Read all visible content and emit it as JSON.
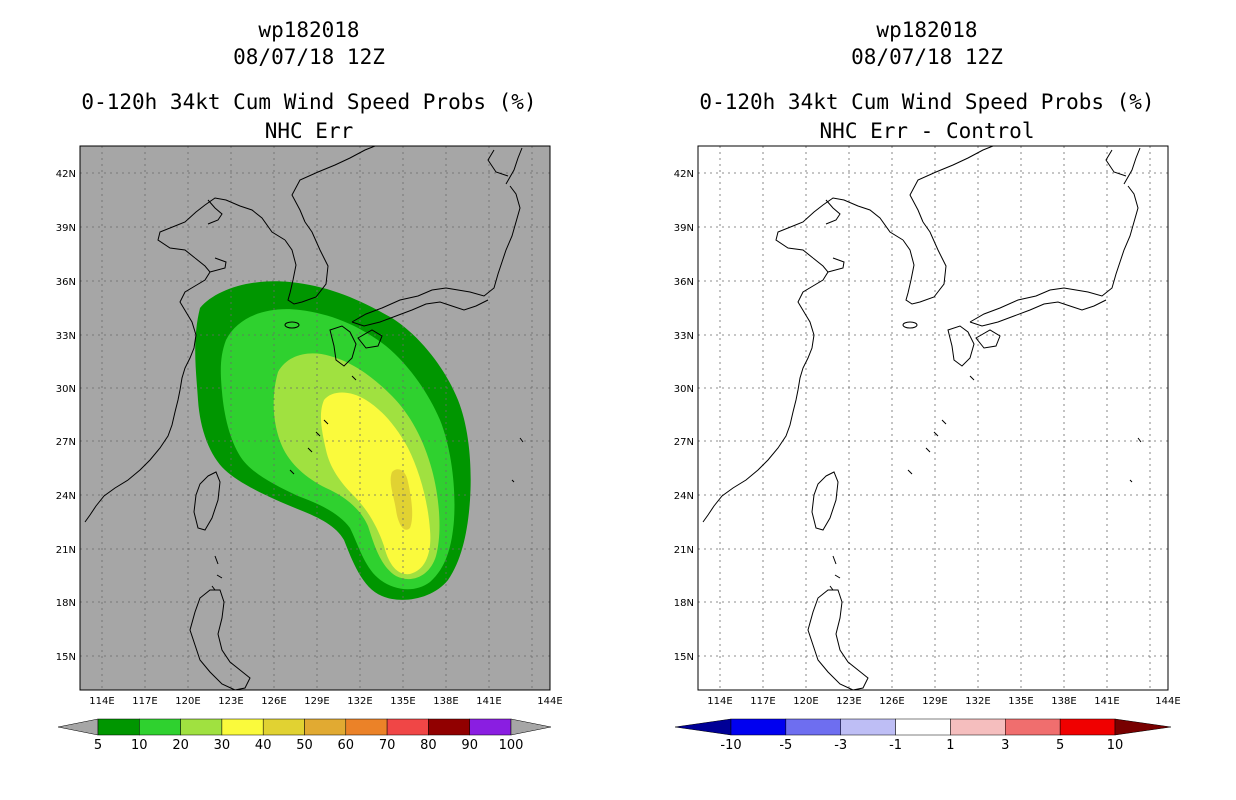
{
  "left": {
    "storm": "wp182018",
    "datetime": "08/07/18 12Z",
    "product": "0-120h 34kt Cum Wind Speed Probs (%)",
    "subtitle": "NHC Err",
    "lat_ticks": [
      "42N",
      "39N",
      "36N",
      "33N",
      "30N",
      "27N",
      "24N",
      "21N",
      "18N",
      "15N"
    ],
    "lon_ticks": [
      "114E",
      "117E",
      "120E",
      "123E",
      "126E",
      "129E",
      "132E",
      "135E",
      "138E",
      "141E",
      "144E"
    ],
    "colorbar": {
      "labels": [
        "5",
        "10",
        "20",
        "30",
        "40",
        "50",
        "60",
        "70",
        "80",
        "90",
        "100"
      ],
      "colors": [
        "#009600",
        "#2fd12f",
        "#a0e140",
        "#fafa3c",
        "#e1d232",
        "#e1aa32",
        "#eb8228",
        "#f04646",
        "#910000",
        "#8a1ee1"
      ],
      "under_color": "#a6a6a6",
      "over_color": "#a6a6a6"
    },
    "background_color": "#a6a6a6"
  },
  "right": {
    "storm": "wp182018",
    "datetime": "08/07/18 12Z",
    "product": "0-120h 34kt Cum Wind Speed Probs (%)",
    "subtitle": "NHC Err - Control",
    "lat_ticks": [
      "42N",
      "39N",
      "36N",
      "33N",
      "30N",
      "27N",
      "24N",
      "21N",
      "18N",
      "15N"
    ],
    "lon_ticks": [
      "114E",
      "117E",
      "120E",
      "123E",
      "126E",
      "129E",
      "132E",
      "135E",
      "138E",
      "141E",
      "144E"
    ],
    "colorbar": {
      "labels": [
        "-10",
        "-5",
        "-3",
        "-1",
        "1",
        "3",
        "5",
        "10"
      ],
      "colors": [
        "#0000f0",
        "#6e6ef0",
        "#bebef5",
        "#ffffff",
        "#f5bebe",
        "#f06e6e",
        "#f00000"
      ],
      "under_color": "#000096",
      "over_color": "#780000"
    },
    "background_color": "#ffffff"
  }
}
